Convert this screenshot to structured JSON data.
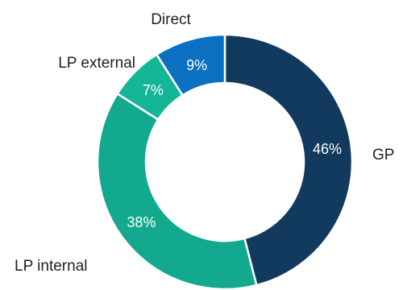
{
  "chart_data": {
    "type": "pie",
    "subtype": "donut",
    "title": "",
    "slices": [
      {
        "label": "GP",
        "value": 46,
        "value_label": "46%",
        "color": "#123a5e"
      },
      {
        "label": "LP internal",
        "value": 38,
        "value_label": "38%",
        "color": "#12a98e"
      },
      {
        "label": "LP external",
        "value": 7,
        "value_label": "7%",
        "color": "#15b597"
      },
      {
        "label": "Direct",
        "value": 9,
        "value_label": "9%",
        "color": "#0b6fc2"
      }
    ],
    "start": "top (12 o'clock)",
    "direction": "clockwise",
    "slice_border_color": "#ffffff"
  }
}
